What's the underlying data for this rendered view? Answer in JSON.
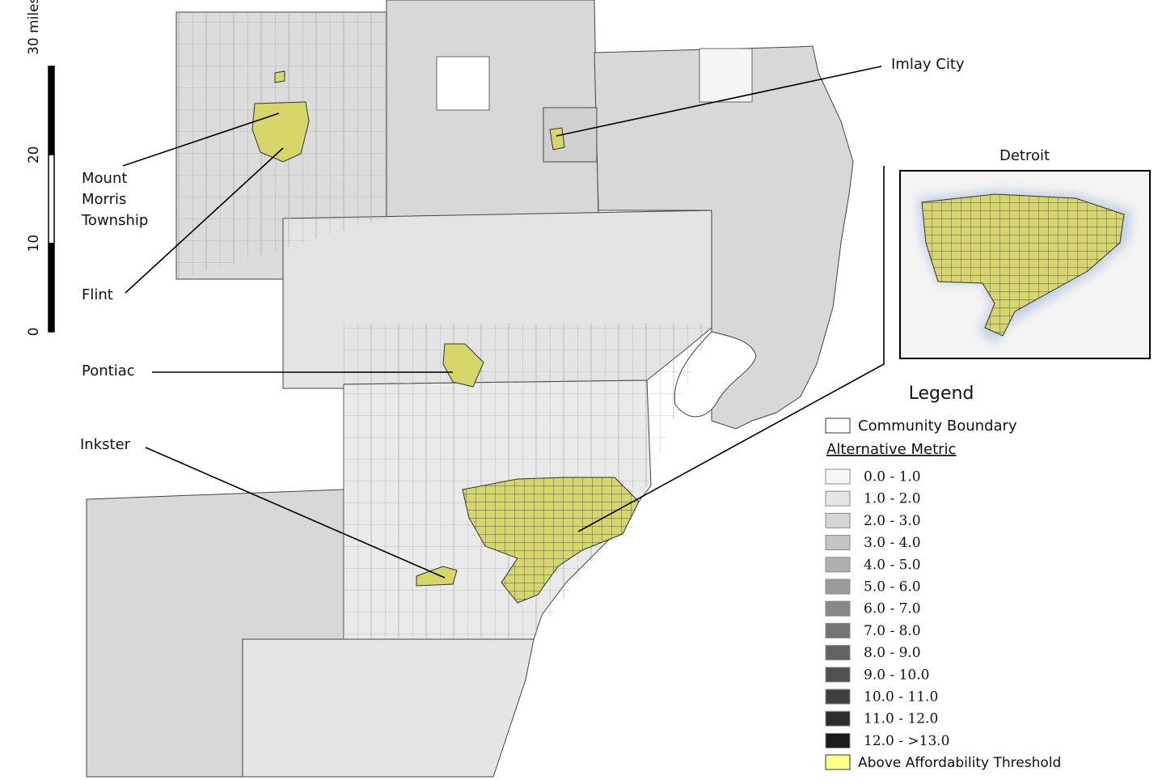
{
  "scale_bar": {
    "ticks": [
      0,
      10,
      20,
      {
        "value": 30,
        "label": "30 miles"
      }
    ]
  },
  "annotations": [
    {
      "label": "Imlay City"
    },
    {
      "label": [
        "Mount",
        "Morris",
        "Township"
      ]
    },
    {
      "label": "Flint"
    },
    {
      "label": "Pontiac"
    },
    {
      "label": "Inkster"
    }
  ],
  "inset": {
    "title": "Detroit"
  },
  "legend": {
    "title": "Legend",
    "boundary_label": "Community Boundary",
    "metric_title": "Alternative Metric",
    "classes": [
      {
        "label": "0.0 - 1.0",
        "color": "#f7f7f7"
      },
      {
        "label": "1.0 - 2.0",
        "color": "#e6e6e6"
      },
      {
        "label": "2.0 - 3.0",
        "color": "#d5d5d5"
      },
      {
        "label": "3.0 - 4.0",
        "color": "#c4c4c4"
      },
      {
        "label": "4.0 - 5.0",
        "color": "#b0b0b0"
      },
      {
        "label": "5.0 - 6.0",
        "color": "#9c9c9c"
      },
      {
        "label": "6.0 - 7.0",
        "color": "#888888"
      },
      {
        "label": "7.0 - 8.0",
        "color": "#747474"
      },
      {
        "label": "8.0 - 9.0",
        "color": "#626262"
      },
      {
        "label": "9.0 - 10.0",
        "color": "#505050"
      },
      {
        "label": "10.0 - 11.0",
        "color": "#3e3e3e"
      },
      {
        "label": "11.0 - 12.0",
        "color": "#2c2c2c"
      },
      {
        "label": "12.0 - >13.0",
        "color": "#1a1a1a"
      }
    ],
    "threshold": {
      "label": "Above Affordability Threshold",
      "color": "#ffff88"
    }
  }
}
